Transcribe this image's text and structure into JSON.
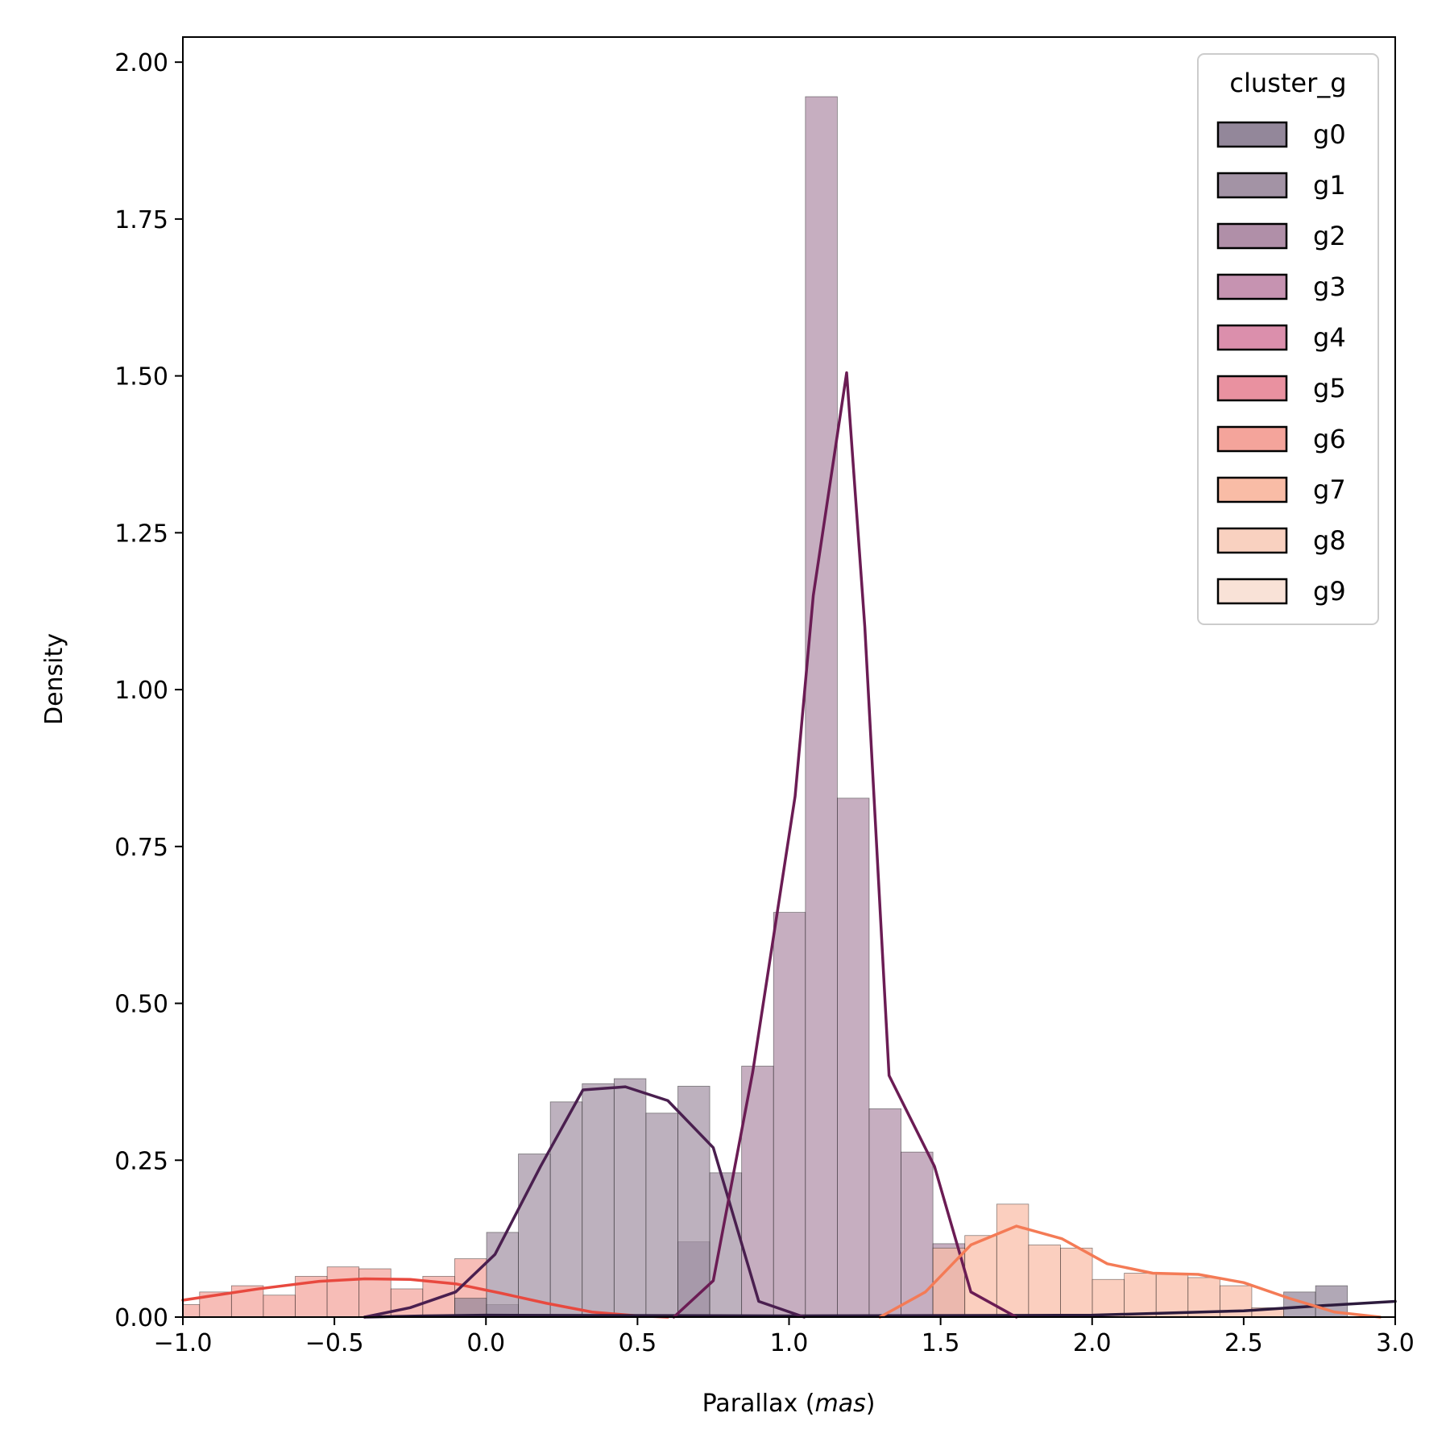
{
  "chart_data": {
    "type": "histogram",
    "xlabel_main": "Parallax (",
    "xlabel_unit": "mas",
    "xlabel_close": ")",
    "ylabel": "Density",
    "xlim": [
      -1.0,
      3.0
    ],
    "ylim": [
      0,
      2.04
    ],
    "xticks": [
      -1.0,
      -0.5,
      0.0,
      0.5,
      1.0,
      1.5,
      2.0,
      2.5,
      3.0
    ],
    "xtick_labels": [
      "−1.0",
      "−0.5",
      "0.0",
      "0.5",
      "1.0",
      "1.5",
      "2.0",
      "2.5",
      "3.0"
    ],
    "yticks": [
      0,
      0.25,
      0.5,
      0.75,
      1.0,
      1.25,
      1.5,
      1.75,
      2.0
    ],
    "ytick_labels": [
      "0.00",
      "0.25",
      "0.50",
      "0.75",
      "1.00",
      "1.25",
      "1.50",
      "1.75",
      "2.00"
    ],
    "bin_start": -1.05,
    "bin_width": 0.1052,
    "legend": {
      "title": "cluster_g",
      "position": "top-right",
      "entries": [
        {
          "label": "g0",
          "color": "#93879a"
        },
        {
          "label": "g1",
          "color": "#a393a5"
        },
        {
          "label": "g2",
          "color": "#b08fa8"
        },
        {
          "label": "g3",
          "color": "#c693b1"
        },
        {
          "label": "g4",
          "color": "#db8fac"
        },
        {
          "label": "g5",
          "color": "#e991a0"
        },
        {
          "label": "g6",
          "color": "#f4a49b"
        },
        {
          "label": "g7",
          "color": "#f9bca6"
        },
        {
          "label": "g8",
          "color": "#f9d1c0"
        },
        {
          "label": "g9",
          "color": "#f9e2d7"
        }
      ]
    },
    "series": [
      {
        "name": "g6",
        "fill": "#f4a49b",
        "bins": [
          [
            0,
            0.02
          ],
          [
            1,
            0.04
          ],
          [
            2,
            0.05
          ],
          [
            3,
            0.035
          ],
          [
            4,
            0.065
          ],
          [
            5,
            0.08
          ],
          [
            6,
            0.077
          ],
          [
            7,
            0.045
          ],
          [
            8,
            0.065
          ],
          [
            9,
            0.093
          ]
        ],
        "kde_color": "#e8493f",
        "kde": [
          [
            -1.0,
            0.027
          ],
          [
            -0.75,
            0.045
          ],
          [
            -0.55,
            0.057
          ],
          [
            -0.4,
            0.061
          ],
          [
            -0.25,
            0.06
          ],
          [
            -0.1,
            0.053
          ],
          [
            0.05,
            0.038
          ],
          [
            0.2,
            0.022
          ],
          [
            0.35,
            0.008
          ],
          [
            0.5,
            0.002
          ],
          [
            0.6,
            0.0
          ]
        ]
      },
      {
        "name": "g0",
        "fill": "#93879a",
        "bins": [
          [
            9,
            0.03
          ],
          [
            10,
            0.02
          ],
          [
            16,
            0.12
          ],
          [
            35,
            0.04
          ],
          [
            36,
            0.05
          ]
        ],
        "kde_color": "#2d1b3d",
        "kde": [
          [
            -0.4,
            0.0
          ],
          [
            -0.2,
            0.002
          ],
          [
            0.0,
            0.003
          ],
          [
            1.0,
            0.002
          ],
          [
            2.0,
            0.003
          ],
          [
            2.5,
            0.01
          ],
          [
            2.75,
            0.018
          ],
          [
            3.0,
            0.025
          ]
        ]
      },
      {
        "name": "g1",
        "fill": "#a393a5",
        "bins": [
          [
            10,
            0.135
          ],
          [
            11,
            0.26
          ],
          [
            12,
            0.343
          ],
          [
            13,
            0.372
          ],
          [
            14,
            0.38
          ],
          [
            15,
            0.325
          ],
          [
            16,
            0.368
          ],
          [
            17,
            0.23
          ]
        ],
        "kde_color": "#4a1f4f",
        "kde": [
          [
            -0.4,
            0.0
          ],
          [
            -0.25,
            0.015
          ],
          [
            -0.1,
            0.04
          ],
          [
            0.03,
            0.1
          ],
          [
            0.18,
            0.24
          ],
          [
            0.32,
            0.362
          ],
          [
            0.46,
            0.367
          ],
          [
            0.6,
            0.345
          ],
          [
            0.75,
            0.27
          ],
          [
            0.9,
            0.025
          ],
          [
            1.05,
            0.0
          ]
        ]
      },
      {
        "name": "g2",
        "fill": "#b08fa8",
        "bins": [
          [
            18,
            0.4
          ],
          [
            19,
            0.645
          ],
          [
            20,
            1.945
          ],
          [
            21,
            0.827
          ],
          [
            22,
            0.332
          ],
          [
            23,
            0.263
          ],
          [
            24,
            0.117
          ]
        ],
        "kde_color": "#6b1c54",
        "kde": [
          [
            0.62,
            0.0
          ],
          [
            0.75,
            0.058
          ],
          [
            0.88,
            0.39
          ],
          [
            1.02,
            0.83
          ],
          [
            1.08,
            1.15
          ],
          [
            1.19,
            1.505
          ],
          [
            1.25,
            1.1
          ],
          [
            1.33,
            0.385
          ],
          [
            1.48,
            0.24
          ],
          [
            1.6,
            0.04
          ],
          [
            1.75,
            0.0
          ]
        ]
      },
      {
        "name": "g7",
        "fill": "#f9bca6",
        "bins": [
          [
            24,
            0.11
          ],
          [
            25,
            0.13
          ],
          [
            26,
            0.18
          ],
          [
            27,
            0.115
          ],
          [
            28,
            0.11
          ],
          [
            29,
            0.06
          ],
          [
            30,
            0.07
          ],
          [
            31,
            0.07
          ],
          [
            32,
            0.063
          ],
          [
            33,
            0.05
          ],
          [
            34,
            0.015
          ]
        ],
        "kde_color": "#f47b56",
        "kde": [
          [
            1.3,
            0.0
          ],
          [
            1.45,
            0.04
          ],
          [
            1.6,
            0.115
          ],
          [
            1.75,
            0.145
          ],
          [
            1.9,
            0.125
          ],
          [
            2.05,
            0.085
          ],
          [
            2.2,
            0.07
          ],
          [
            2.35,
            0.068
          ],
          [
            2.5,
            0.055
          ],
          [
            2.65,
            0.03
          ],
          [
            2.8,
            0.008
          ],
          [
            2.95,
            0.0
          ]
        ]
      }
    ]
  }
}
